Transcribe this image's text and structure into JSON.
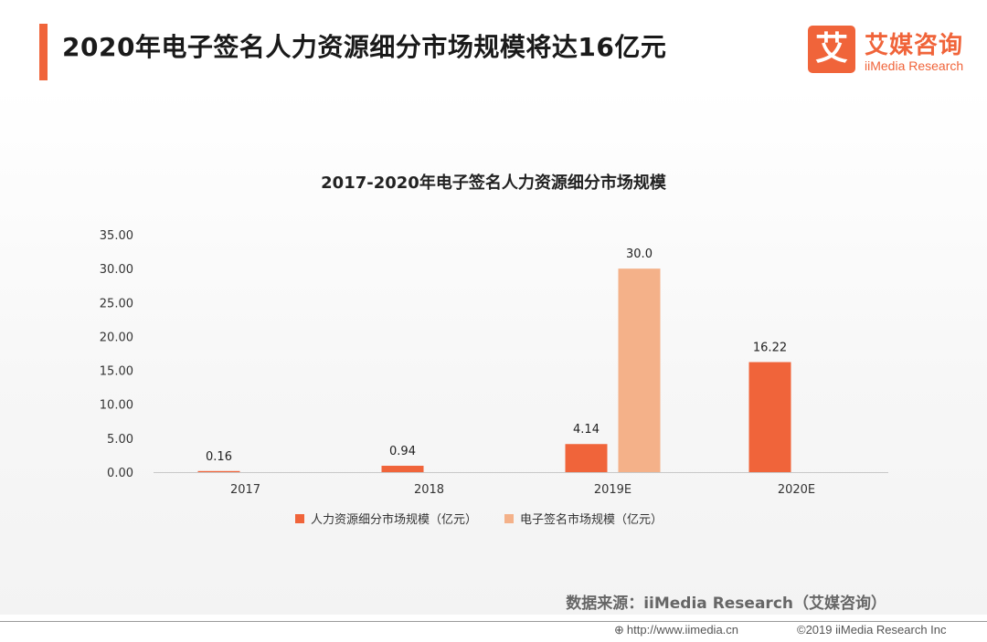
{
  "header": {
    "title": "2020年电子签名人力资源细分市场规模将达16亿元",
    "logo_mark": "艾",
    "logo_cn": "艾媒咨询",
    "logo_en": "iiMedia Research",
    "accent_color": "#f0643a"
  },
  "chart_data": {
    "type": "bar",
    "title": "2017-2020年电子签名人力资源细分市场规模",
    "xlabel": "",
    "ylabel": "",
    "categories": [
      "2017",
      "2018",
      "2019E",
      "2020E"
    ],
    "ylim": [
      0,
      35
    ],
    "yticks": [
      "0.00",
      "5.00",
      "10.00",
      "15.00",
      "20.00",
      "25.00",
      "30.00",
      "35.00"
    ],
    "grid": false,
    "legend_position": "bottom",
    "series": [
      {
        "name": "人力资源细分市场规模（亿元）",
        "color": "#f0643a",
        "values": [
          0.16,
          0.94,
          4.14,
          16.22
        ],
        "labels": [
          "0.16",
          "0.94",
          "4.14",
          "16.22"
        ]
      },
      {
        "name": "电子签名市场规模（亿元）",
        "color": "#f4b189",
        "values": [
          null,
          null,
          30.0,
          null
        ],
        "labels": [
          null,
          null,
          "30.0",
          null
        ]
      }
    ]
  },
  "footer": {
    "source": "数据来源：iiMedia Research（艾媒咨询）",
    "url": "http://www.iimedia.cn",
    "copyright": "©2019 iiMedia Research Inc"
  }
}
